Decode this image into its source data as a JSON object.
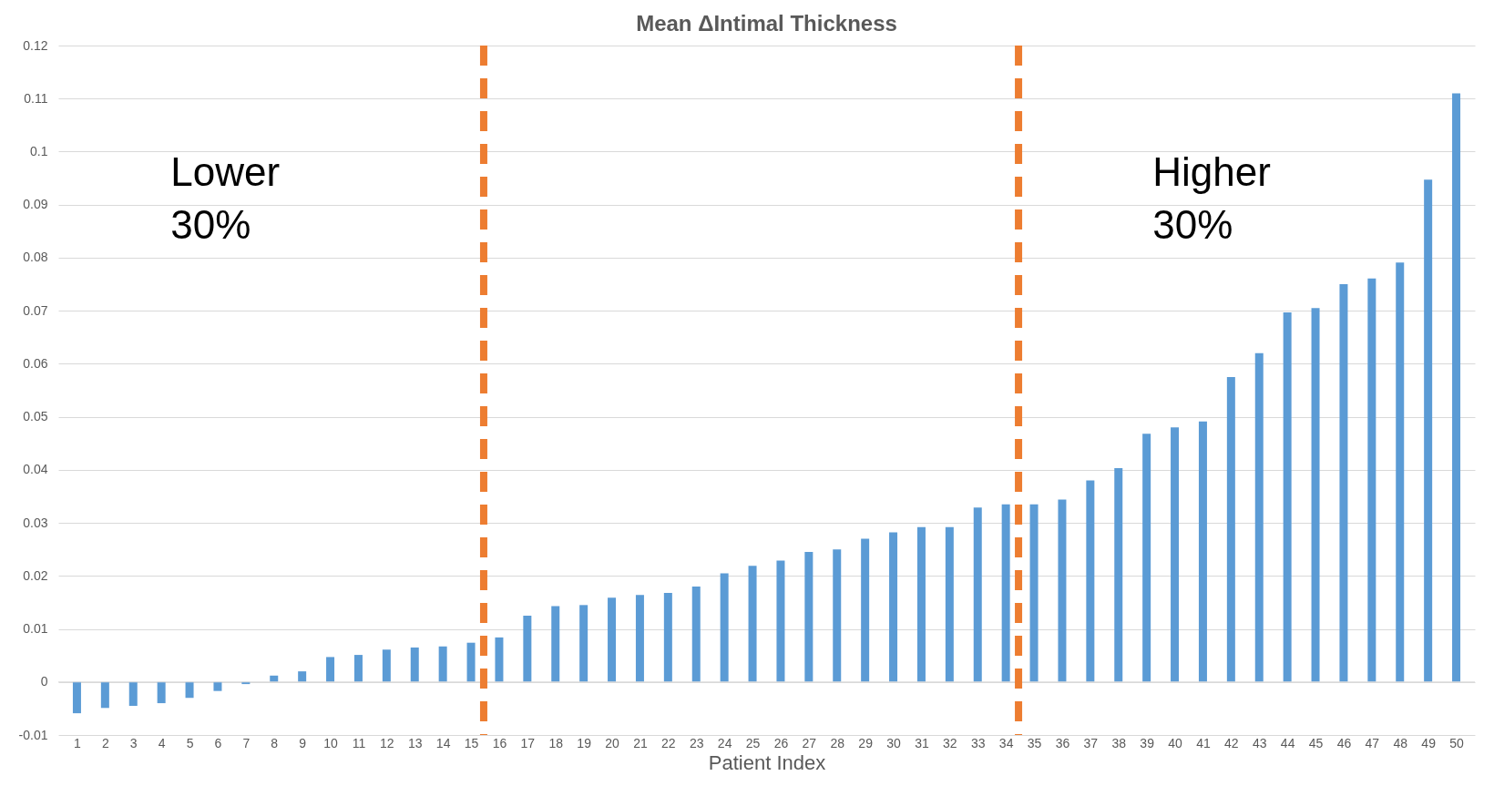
{
  "chart_data": {
    "type": "bar",
    "title": "Mean ΔIntimal Thickness",
    "xlabel": "Patient Index",
    "x": [
      1,
      2,
      3,
      4,
      5,
      6,
      7,
      8,
      9,
      10,
      11,
      12,
      13,
      14,
      15,
      16,
      17,
      18,
      19,
      20,
      21,
      22,
      23,
      24,
      25,
      26,
      27,
      28,
      29,
      30,
      31,
      32,
      33,
      34,
      35,
      36,
      37,
      38,
      39,
      40,
      41,
      42,
      43,
      44,
      45,
      46,
      47,
      48,
      49,
      50
    ],
    "values": [
      -0.0059,
      -0.0049,
      -0.0045,
      -0.004,
      -0.003,
      -0.0017,
      -0.0004,
      0.0012,
      0.002,
      0.0047,
      0.0051,
      0.0061,
      0.0065,
      0.0067,
      0.0074,
      0.0084,
      0.0125,
      0.0143,
      0.0145,
      0.0159,
      0.0164,
      0.0168,
      0.018,
      0.0205,
      0.0219,
      0.0229,
      0.0245,
      0.025,
      0.027,
      0.0282,
      0.0292,
      0.0292,
      0.0329,
      0.0335,
      0.0335,
      0.0344,
      0.038,
      0.0403,
      0.0468,
      0.048,
      0.0491,
      0.0575,
      0.062,
      0.0697,
      0.0705,
      0.075,
      0.0761,
      0.0791,
      0.0947,
      0.111
    ],
    "color": "#5b9bd5",
    "xlim": [
      0.5,
      50.5
    ],
    "xticks": [
      1,
      2,
      3,
      4,
      5,
      6,
      7,
      8,
      9,
      10,
      11,
      12,
      13,
      14,
      15,
      16,
      17,
      18,
      19,
      20,
      21,
      22,
      23,
      24,
      25,
      26,
      27,
      28,
      29,
      30,
      31,
      32,
      33,
      34,
      35,
      36,
      37,
      38,
      39,
      40,
      41,
      42,
      43,
      44,
      45,
      46,
      47,
      48,
      49,
      50
    ],
    "ylim": [
      -0.01,
      0.12
    ],
    "yticks": [
      -0.01,
      0,
      0.01,
      0.02,
      0.03,
      0.04,
      0.05,
      0.06,
      0.07,
      0.08,
      0.09,
      0.1,
      0.11,
      0.12
    ],
    "grid": "y",
    "ref_lines": [
      {
        "axis": "x",
        "value": 15.45,
        "color": "#ed7d31",
        "line_style": "dashed"
      },
      {
        "axis": "x",
        "value": 34.45,
        "color": "#ed7d31",
        "line_style": "dashed"
      }
    ],
    "annotations": [
      "Lower 30%",
      "Higher 30%"
    ]
  }
}
